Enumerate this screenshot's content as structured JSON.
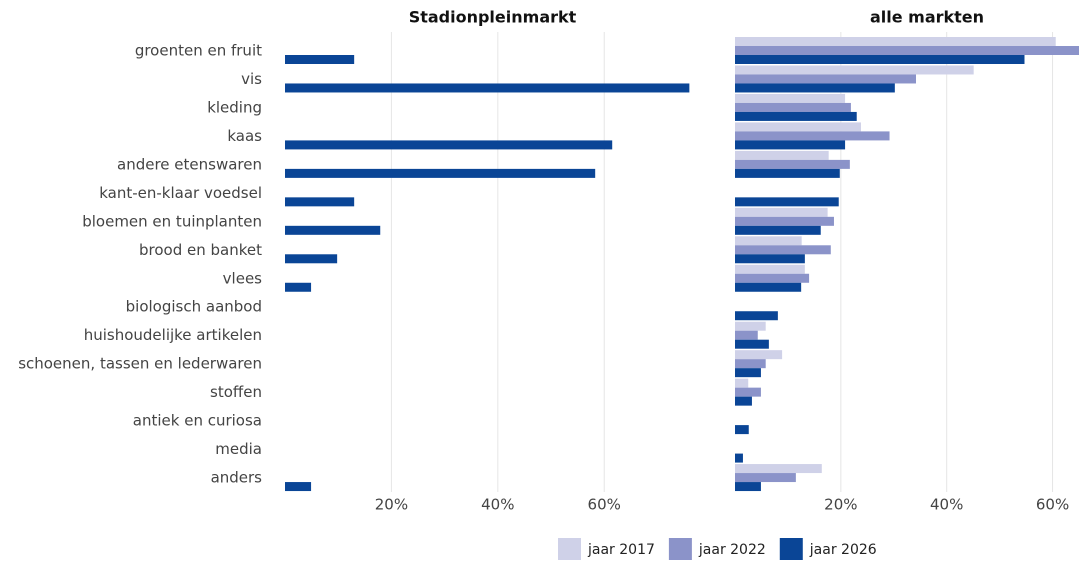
{
  "chart_data": {
    "type": "bar",
    "orientation": "horizontal",
    "categories": [
      "groenten en fruit",
      "vis",
      "kleding",
      "kaas",
      "andere etenswaren",
      "kant-en-klaar voedsel",
      "bloemen en tuinplanten",
      "brood en banket",
      "vlees",
      "biologisch aanbod",
      "huishoudelijke artikelen",
      "schoenen, tassen en lederwaren",
      "stoffen",
      "antiek en curiosa",
      "media",
      "anders"
    ],
    "grid": true,
    "panels": [
      {
        "title": "Stadionpleinmarkt",
        "xlim": [
          0,
          78
        ],
        "xticks": [
          {
            "value": 20,
            "label": "20%"
          },
          {
            "value": 40,
            "label": "40%"
          },
          {
            "value": 60,
            "label": "60%"
          }
        ],
        "series": [
          {
            "color": "#0a4596",
            "values": [
              13.0,
              76.0,
              null,
              61.5,
              58.3,
              13.0,
              17.9,
              9.8,
              4.9,
              null,
              null,
              null,
              null,
              null,
              null,
              4.9
            ]
          }
        ]
      },
      {
        "title": "alle markten",
        "xlim": [
          0,
          65
        ],
        "xticks": [
          {
            "value": 20,
            "label": "20%"
          },
          {
            "value": 40,
            "label": "40%"
          },
          {
            "value": 60,
            "label": "60%"
          }
        ],
        "series": [
          {
            "name": "jaar 2017",
            "color": "#cfd1e8",
            "values": [
              60.6,
              45.1,
              20.8,
              23.8,
              17.7,
              null,
              17.5,
              12.6,
              13.2,
              null,
              5.8,
              8.9,
              2.5,
              null,
              null,
              16.4
            ]
          },
          {
            "name": "jaar 2022",
            "color": "#8b93c9",
            "values": [
              65,
              34.2,
              21.9,
              29.2,
              21.7,
              null,
              18.7,
              18.1,
              14.0,
              null,
              4.3,
              5.8,
              4.9,
              null,
              null,
              11.5
            ]
          },
          {
            "name": "jaar 2026",
            "color": "#0a4596",
            "values": [
              54.7,
              30.2,
              23.0,
              20.8,
              19.8,
              19.6,
              16.2,
              13.2,
              12.5,
              8.1,
              6.4,
              4.9,
              3.2,
              2.6,
              1.5,
              4.9
            ]
          }
        ]
      }
    ]
  }
}
